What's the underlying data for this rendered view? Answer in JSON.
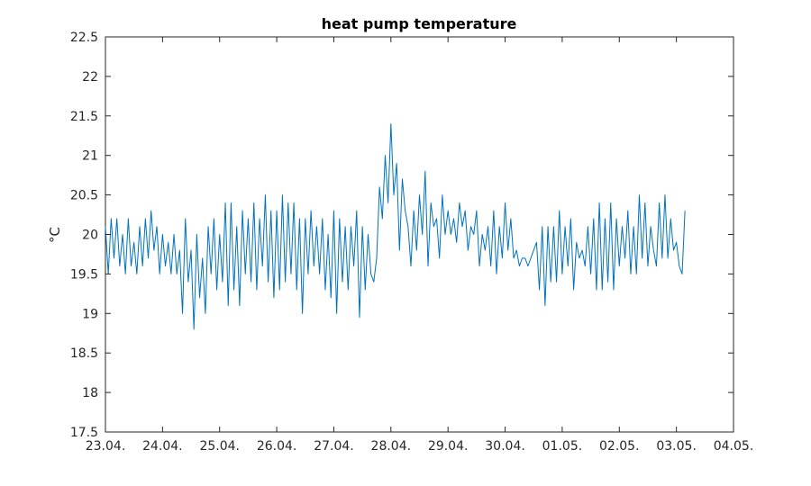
{
  "chart_data": {
    "type": "line",
    "title": "heat pump temperature",
    "xlabel": "",
    "ylabel": "°C",
    "xlim": [
      "23.04.",
      "04.05."
    ],
    "ylim": [
      17.5,
      22.5
    ],
    "x_ticks": [
      "23.04.",
      "24.04.",
      "25.04.",
      "26.04.",
      "27.04.",
      "28.04.",
      "29.04.",
      "30.04.",
      "01.05.",
      "02.05.",
      "03.05.",
      "04.05."
    ],
    "y_ticks": [
      "17.5",
      "18",
      "18.5",
      "19",
      "19.5",
      "20",
      "20.5",
      "21",
      "21.5",
      "22",
      "22.5"
    ],
    "grid": false,
    "legend": "none",
    "series": [
      {
        "color": "#0072bd",
        "x_days_from_23_04": [
          0.0,
          0.05,
          0.1,
          0.15,
          0.2,
          0.25,
          0.3,
          0.35,
          0.4,
          0.45,
          0.5,
          0.55,
          0.6,
          0.65,
          0.7,
          0.75,
          0.8,
          0.85,
          0.9,
          0.95,
          1.0,
          1.05,
          1.1,
          1.15,
          1.2,
          1.25,
          1.3,
          1.35,
          1.4,
          1.45,
          1.5,
          1.55,
          1.6,
          1.65,
          1.7,
          1.75,
          1.8,
          1.85,
          1.9,
          1.95,
          2.0,
          2.05,
          2.1,
          2.15,
          2.2,
          2.25,
          2.3,
          2.35,
          2.4,
          2.45,
          2.5,
          2.55,
          2.6,
          2.65,
          2.7,
          2.75,
          2.8,
          2.85,
          2.9,
          2.95,
          3.0,
          3.05,
          3.1,
          3.15,
          3.2,
          3.25,
          3.3,
          3.35,
          3.4,
          3.45,
          3.5,
          3.55,
          3.6,
          3.65,
          3.7,
          3.75,
          3.8,
          3.85,
          3.9,
          3.95,
          4.0,
          4.05,
          4.1,
          4.15,
          4.2,
          4.25,
          4.3,
          4.35,
          4.4,
          4.45,
          4.5,
          4.55,
          4.6,
          4.65,
          4.7,
          4.75,
          4.8,
          4.85,
          4.9,
          4.95,
          5.0,
          5.05,
          5.1,
          5.15,
          5.2,
          5.25,
          5.3,
          5.35,
          5.4,
          5.45,
          5.5,
          5.55,
          5.6,
          5.65,
          5.7,
          5.75,
          5.8,
          5.85,
          5.9,
          5.95,
          6.0,
          6.05,
          6.1,
          6.15,
          6.2,
          6.25,
          6.3,
          6.35,
          6.4,
          6.45,
          6.5,
          6.55,
          6.6,
          6.65,
          6.7,
          6.75,
          6.8,
          6.85,
          6.9,
          6.95,
          7.0,
          7.05,
          7.1,
          7.15,
          7.2,
          7.25,
          7.3,
          7.35,
          7.4,
          7.45,
          7.5,
          7.55,
          7.6,
          7.65,
          7.7,
          7.75,
          7.8,
          7.85,
          7.9,
          7.95,
          8.0,
          8.05,
          8.1,
          8.15,
          8.2,
          8.25,
          8.3,
          8.35,
          8.4,
          8.45,
          8.5,
          8.55,
          8.6,
          8.65,
          8.7,
          8.75,
          8.8,
          8.85,
          8.9,
          8.95,
          9.0,
          9.05,
          9.1,
          9.15,
          9.2,
          9.25,
          9.3,
          9.35,
          9.4,
          9.45,
          9.5,
          9.55,
          9.6,
          9.65,
          9.7,
          9.75,
          9.8,
          9.85,
          9.9,
          9.95,
          10.0,
          10.05,
          10.1,
          10.15
        ],
        "y": [
          20.1,
          19.5,
          20.2,
          19.7,
          20.2,
          19.6,
          20.0,
          19.5,
          20.2,
          19.6,
          19.9,
          19.5,
          20.1,
          19.6,
          20.2,
          19.7,
          20.3,
          19.8,
          20.1,
          19.5,
          20.0,
          19.6,
          19.9,
          19.5,
          20.0,
          19.5,
          19.8,
          19.0,
          20.2,
          19.4,
          19.8,
          18.8,
          20.0,
          19.2,
          19.7,
          19.0,
          20.1,
          19.5,
          20.2,
          19.3,
          20.0,
          19.4,
          20.4,
          19.1,
          20.4,
          19.3,
          20.1,
          19.1,
          20.3,
          19.5,
          20.2,
          19.4,
          20.4,
          19.3,
          20.2,
          19.6,
          20.5,
          19.4,
          20.3,
          19.2,
          20.3,
          19.3,
          20.5,
          19.4,
          20.4,
          19.5,
          20.4,
          19.3,
          20.2,
          19.0,
          20.2,
          19.5,
          20.3,
          19.6,
          20.1,
          19.5,
          20.2,
          19.3,
          20.0,
          19.2,
          20.3,
          19.0,
          20.2,
          19.4,
          20.1,
          19.3,
          20.1,
          19.6,
          20.3,
          18.95,
          20.1,
          19.3,
          20.0,
          19.5,
          19.4,
          19.7,
          20.6,
          20.2,
          21.0,
          20.4,
          21.4,
          20.5,
          20.9,
          19.8,
          20.7,
          20.3,
          20.1,
          19.6,
          20.3,
          19.8,
          20.5,
          20.0,
          20.8,
          19.6,
          20.4,
          20.1,
          20.2,
          19.7,
          20.5,
          20.0,
          20.3,
          20.0,
          20.2,
          19.9,
          20.4,
          20.1,
          20.3,
          19.8,
          20.1,
          20.0,
          20.3,
          19.6,
          20.0,
          19.8,
          20.1,
          19.6,
          20.3,
          19.5,
          20.1,
          19.7,
          20.4,
          19.8,
          20.2,
          19.7,
          19.8,
          19.6,
          19.7,
          19.7,
          19.6,
          19.7,
          19.8,
          19.9,
          19.3,
          20.1,
          19.1,
          20.1,
          19.4,
          20.1,
          19.4,
          20.3,
          19.5,
          20.1,
          19.6,
          20.2,
          19.3,
          19.9,
          19.7,
          19.8,
          19.6,
          20.1,
          19.5,
          20.2,
          19.3,
          20.4,
          19.3,
          20.2,
          19.4,
          20.4,
          19.3,
          20.2,
          19.6,
          20.1,
          19.7,
          20.3,
          19.5,
          20.1,
          19.5,
          20.5,
          19.7,
          20.4,
          19.6,
          20.1,
          19.8,
          19.6,
          20.4,
          19.7,
          20.5,
          19.7,
          20.2,
          19.8,
          19.9,
          19.6,
          19.5,
          20.3
        ]
      }
    ]
  }
}
